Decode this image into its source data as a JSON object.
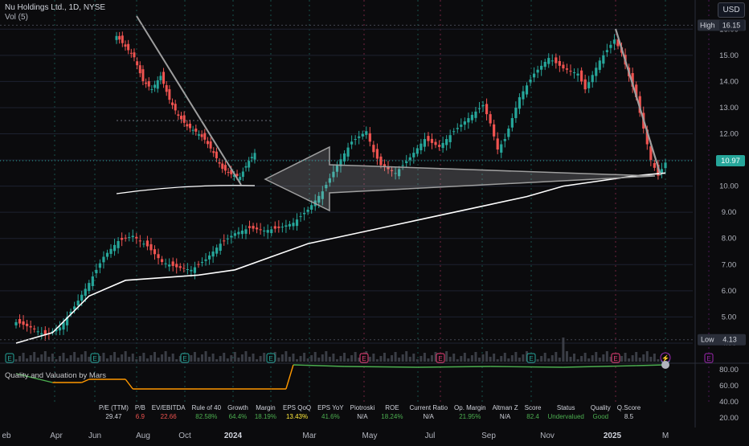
{
  "header": {
    "title": "Nu Holdings Ltd., 1D, NYSE",
    "volume_label": "Vol (5)",
    "currency": "USD"
  },
  "price_axis": {
    "ticks": [
      "16.00",
      "15.00",
      "14.00",
      "13.00",
      "12.00",
      "11.00",
      "10.00",
      "9.00",
      "8.00",
      "7.00",
      "6.00",
      "5.00",
      "4.00"
    ],
    "high_label": "High",
    "high_value": "16.15",
    "low_label": "Low",
    "low_value": "4.13",
    "last_value": "10.97"
  },
  "time_axis": {
    "ticks": [
      "eb",
      "Apr",
      "Jun",
      "Aug",
      "Oct",
      "2024",
      "Mar",
      "May",
      "Jul",
      "Sep",
      "Nov",
      "2025",
      "M"
    ]
  },
  "indicator": {
    "title": "Quality and Valuation by Mars",
    "axis_ticks": [
      "80.00",
      "60.00",
      "40.00",
      "20.00"
    ],
    "headers": [
      "P/E (TTM)",
      "P/B",
      "EV/EBITDA",
      "Rule of 40",
      "Growth",
      "Margin",
      "EPS QoQ",
      "EPS YoY",
      "Piotroski",
      "ROE",
      "Current Ratio",
      "Op. Margin",
      "Altman Z",
      "Score",
      "Status",
      "Quality",
      "Q.Score"
    ],
    "values": [
      "29.47",
      "6.9",
      "22.66",
      "82.58%",
      "64.4%",
      "18.19%",
      "13.43%",
      "41.6%",
      "N/A",
      "18.24%",
      "N/A",
      "21.95%",
      "N/A",
      "82.4",
      "Undervalued",
      "Good",
      "8.5"
    ],
    "value_colors": [
      "#d1d4dc",
      "#ef5350",
      "#ef5350",
      "#4caf50",
      "#4caf50",
      "#4caf50",
      "#ffeb3b",
      "#4caf50",
      "#d1d4dc",
      "#4caf50",
      "#d1d4dc",
      "#4caf50",
      "#d1d4dc",
      "#4caf50",
      "#4caf50",
      "#4caf50",
      "#d1d4dc"
    ]
  },
  "event_markers": [
    "E",
    "E",
    "E",
    "E",
    "E",
    "E",
    "E",
    "E",
    "E",
    "E",
    "E",
    "E"
  ],
  "colors": {
    "up": "#26a69a",
    "down": "#ef5350",
    "background": "#0b0b0d",
    "ma_line": "#ffffff",
    "trendline": "#9e9e9e",
    "earnings_line": "#ec407a",
    "dividend_line": "#9c27b0"
  },
  "chart_data": {
    "type": "candlestick",
    "symbol": "Nu Holdings Ltd.",
    "interval": "1D",
    "exchange": "NYSE",
    "ylim": [
      3.6,
      16.5
    ],
    "high": 16.15,
    "low": 4.13,
    "last": 10.97,
    "x_ticks": [
      "eb",
      "Apr",
      "Jun",
      "Aug",
      "Oct",
      "2024",
      "Mar",
      "May",
      "Jul",
      "Sep",
      "Nov",
      "2025",
      "M"
    ],
    "series": [
      {
        "name": "price (approx. close path)",
        "points": [
          [
            0,
            4.8
          ],
          [
            4,
            4.6
          ],
          [
            8,
            4.3
          ],
          [
            12,
            4.6
          ],
          [
            16,
            5.4
          ],
          [
            20,
            6.3
          ],
          [
            24,
            7.3
          ],
          [
            28,
            7.9
          ],
          [
            32,
            8.1
          ],
          [
            36,
            7.7
          ],
          [
            40,
            7.1
          ],
          [
            44,
            6.9
          ],
          [
            48,
            6.8
          ],
          [
            52,
            7.2
          ],
          [
            56,
            7.8
          ],
          [
            60,
            8.2
          ],
          [
            64,
            8.4
          ],
          [
            68,
            8.3
          ],
          [
            72,
            8.4
          ],
          [
            76,
            8.6
          ],
          [
            80,
            9.1
          ],
          [
            84,
            9.8
          ],
          [
            88,
            10.8
          ],
          [
            92,
            11.7
          ],
          [
            96,
            12.1
          ],
          [
            98,
            11.3
          ],
          [
            100,
            10.8
          ],
          [
            104,
            10.5
          ],
          [
            108,
            11.1
          ],
          [
            112,
            11.8
          ],
          [
            116,
            11.5
          ],
          [
            120,
            12.1
          ],
          [
            124,
            12.6
          ],
          [
            128,
            13.1
          ],
          [
            130,
            12.4
          ],
          [
            132,
            11.4
          ],
          [
            134,
            11.8
          ],
          [
            138,
            13.4
          ],
          [
            142,
            14.3
          ],
          [
            146,
            14.9
          ],
          [
            150,
            14.5
          ],
          [
            154,
            14.3
          ],
          [
            156,
            13.7
          ],
          [
            160,
            14.8
          ],
          [
            164,
            15.6
          ],
          [
            166,
            15.1
          ],
          [
            168,
            14.2
          ],
          [
            170,
            13.4
          ],
          [
            172,
            12.2
          ],
          [
            174,
            11.0
          ],
          [
            176,
            10.4
          ],
          [
            178,
            10.9
          ]
        ]
      },
      {
        "name": "moving average",
        "points": [
          [
            0,
            4.0
          ],
          [
            10,
            4.4
          ],
          [
            20,
            5.8
          ],
          [
            30,
            6.4
          ],
          [
            40,
            6.5
          ],
          [
            50,
            6.6
          ],
          [
            60,
            6.8
          ],
          [
            70,
            7.3
          ],
          [
            80,
            7.8
          ],
          [
            90,
            8.1
          ],
          [
            100,
            8.4
          ],
          [
            110,
            8.7
          ],
          [
            120,
            9.0
          ],
          [
            130,
            9.3
          ],
          [
            140,
            9.6
          ],
          [
            150,
            10.0
          ],
          [
            160,
            10.2
          ],
          [
            170,
            10.4
          ],
          [
            178,
            10.5
          ]
        ]
      }
    ],
    "inset_series": {
      "name": "price (zoomed inset)",
      "points": [
        [
          0,
          15.6
        ],
        [
          6,
          15.2
        ],
        [
          12,
          14.8
        ],
        [
          18,
          13.9
        ],
        [
          24,
          13.6
        ],
        [
          30,
          14.1
        ],
        [
          36,
          13.2
        ],
        [
          42,
          12.6
        ],
        [
          48,
          12.2
        ],
        [
          54,
          12.0
        ],
        [
          60,
          11.7
        ],
        [
          66,
          11.2
        ],
        [
          72,
          10.6
        ],
        [
          78,
          10.4
        ],
        [
          84,
          10.3
        ],
        [
          90,
          10.9
        ],
        [
          94,
          11.2
        ]
      ]
    },
    "indicator_series": {
      "name": "Quality and Valuation",
      "ylim": [
        10,
        90
      ],
      "points": [
        [
          0,
          75
        ],
        [
          10,
          64
        ],
        [
          18,
          64
        ],
        [
          20,
          68
        ],
        [
          30,
          68
        ],
        [
          32,
          56
        ],
        [
          50,
          56
        ],
        [
          70,
          56
        ],
        [
          74,
          56
        ],
        [
          76,
          86
        ],
        [
          90,
          84
        ],
        [
          110,
          83
        ],
        [
          130,
          84
        ],
        [
          150,
          83
        ],
        [
          170,
          85
        ],
        [
          178,
          86
        ]
      ]
    }
  }
}
